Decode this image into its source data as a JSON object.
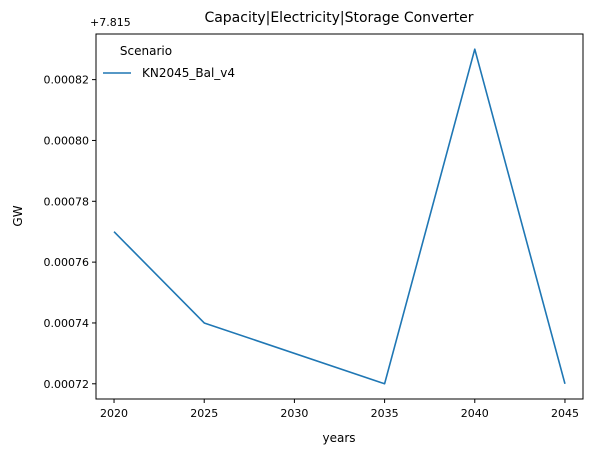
{
  "chart_data": {
    "type": "line",
    "title": "Capacity|Electricity|Storage Converter",
    "xlabel": "years",
    "ylabel": "GW",
    "offset_label": "+7.815",
    "x": [
      2020,
      2025,
      2035,
      2040,
      2045
    ],
    "x_ticks": [
      "2020",
      "2025",
      "2030",
      "2035",
      "2040",
      "2045"
    ],
    "y_ticks": [
      "0.00072",
      "0.00074",
      "0.00076",
      "0.00078",
      "0.00080",
      "0.00082"
    ],
    "xlim": [
      2019,
      2046
    ],
    "ylim": [
      0.000715,
      0.000835
    ],
    "legend": {
      "title": "Scenario",
      "placement": "upper-left"
    },
    "series": [
      {
        "name": "KN2045_Bal_v4",
        "color": "#1f77b4",
        "values": [
          0.00077,
          0.00074,
          0.00072,
          0.00083,
          0.00072
        ]
      }
    ],
    "grid": false
  }
}
